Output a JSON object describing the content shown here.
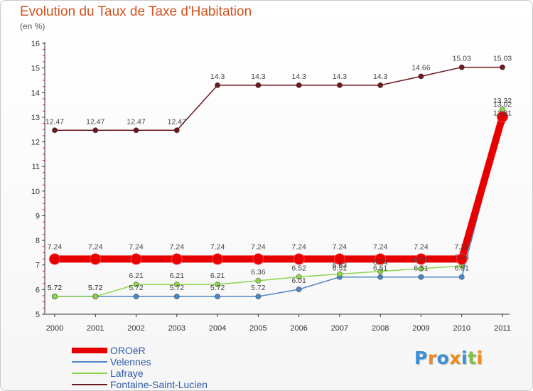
{
  "header": {
    "title": "Evolution du Taux de Taxe d'Habitation",
    "subtitle": "(en %)"
  },
  "logo": {
    "text": "Proxiti",
    "colors": [
      "#3a8fd6",
      "#f08a1c",
      "#3a8fd6",
      "#f08a1c",
      "#3a8fd6",
      "#7cc242",
      "#f08a1c"
    ]
  },
  "chart_data": {
    "type": "line",
    "title": "Evolution du Taux de Taxe d'Habitation",
    "subtitle": "(en %)",
    "categories": [
      "2000",
      "2001",
      "2002",
      "2003",
      "2004",
      "2005",
      "2006",
      "2007",
      "2008",
      "2009",
      "2010",
      "2011"
    ],
    "yticks": [
      "5",
      "6",
      "7",
      "8",
      "9",
      "10",
      "11",
      "12",
      "13",
      "14",
      "15",
      "16"
    ],
    "ylim": [
      5,
      16
    ],
    "grid": false,
    "legend_position": "bottom-left",
    "series": [
      {
        "name": "Fontaine-Saint-Lucien",
        "color": "#6b1a1f",
        "values": [
          12.47,
          12.47,
          12.47,
          12.47,
          14.3,
          14.3,
          14.3,
          14.3,
          14.3,
          14.66,
          15.03,
          15.03
        ],
        "labels": [
          "12.47",
          "12.47",
          "12.47",
          "12.47",
          "14.3",
          "14.3",
          "14.3",
          "14.3",
          "14.3",
          "14.66",
          "15.03",
          "15.03"
        ]
      },
      {
        "name": "Velennes",
        "color": "#4e86c4",
        "values": [
          5.72,
          5.72,
          5.72,
          5.72,
          5.72,
          5.72,
          6.01,
          6.51,
          6.51,
          6.51,
          6.51,
          12.81
        ],
        "labels": [
          "5.72",
          "5.72",
          "5.72",
          "5.72",
          "5.72",
          "5.72",
          "6.01",
          "6.51",
          "6.51",
          "6.51",
          "6.51",
          "12.81"
        ]
      },
      {
        "name": "Lafraye",
        "color": "#8ed54e",
        "values": [
          5.72,
          5.72,
          6.21,
          6.21,
          6.21,
          6.36,
          6.52,
          6.63,
          6.74,
          6.85,
          6.96,
          13.32
        ],
        "labels": [
          "5.72",
          "5.72",
          "6.21",
          "6.21",
          "6.21",
          "6.36",
          "6.52",
          "6.63",
          "6.74",
          "6.85",
          "6.96",
          "13.32"
        ]
      },
      {
        "name": "OROëR",
        "color": "#e60000",
        "values": [
          7.24,
          7.24,
          7.24,
          7.24,
          7.24,
          7.24,
          7.24,
          7.24,
          7.24,
          7.24,
          7.24,
          13.02
        ],
        "labels": [
          "7.24",
          "7.24",
          "7.24",
          "7.24",
          "7.24",
          "7.24",
          "7.24",
          "7.24",
          "7.24",
          "7.24",
          "7.24",
          "13.02"
        ]
      }
    ],
    "legend": [
      {
        "label": "OROëR",
        "color": "#e60000",
        "thick": true
      },
      {
        "label": "Velennes",
        "color": "#4e86c4"
      },
      {
        "label": "Lafraye",
        "color": "#8ed54e"
      },
      {
        "label": "Fontaine-Saint-Lucien",
        "color": "#6b1a1f"
      }
    ]
  }
}
